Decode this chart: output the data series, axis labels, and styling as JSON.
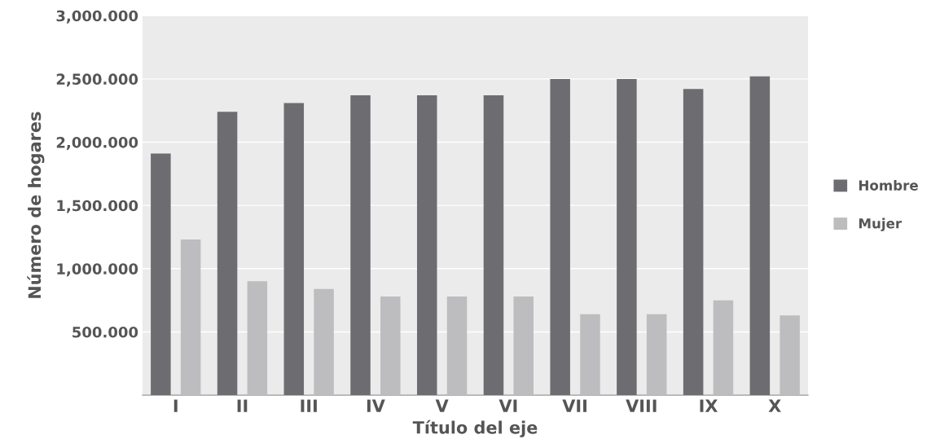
{
  "chart_data": {
    "type": "bar",
    "xlabel": "Título del eje",
    "ylabel": "Número de hogares",
    "categories": [
      "I",
      "II",
      "III",
      "IV",
      "V",
      "VI",
      "VII",
      "VIII",
      "IX",
      "X"
    ],
    "series": [
      {
        "name": "Hombre",
        "color": "#6d6d71",
        "values": [
          1910,
          2240,
          2310,
          2370,
          2370,
          2370,
          2500,
          2500,
          2420,
          2520
        ]
      },
      {
        "name": "Mujer",
        "color": "#bdbdbf",
        "values": [
          1230,
          900,
          840,
          780,
          780,
          780,
          640,
          640,
          750,
          630
        ]
      }
    ],
    "ylim": [
      0,
      3000
    ],
    "yticks": [
      {
        "value": 500,
        "label": "500.000"
      },
      {
        "value": 1000,
        "label": "1,000.000"
      },
      {
        "value": 1500,
        "label": "1,500.000"
      },
      {
        "value": 2000,
        "label": "2,000.000"
      },
      {
        "value": 2500,
        "label": "2,500.000"
      },
      {
        "value": 3000,
        "label": "3,000.000"
      }
    ],
    "grid": "y",
    "legend": "right"
  }
}
